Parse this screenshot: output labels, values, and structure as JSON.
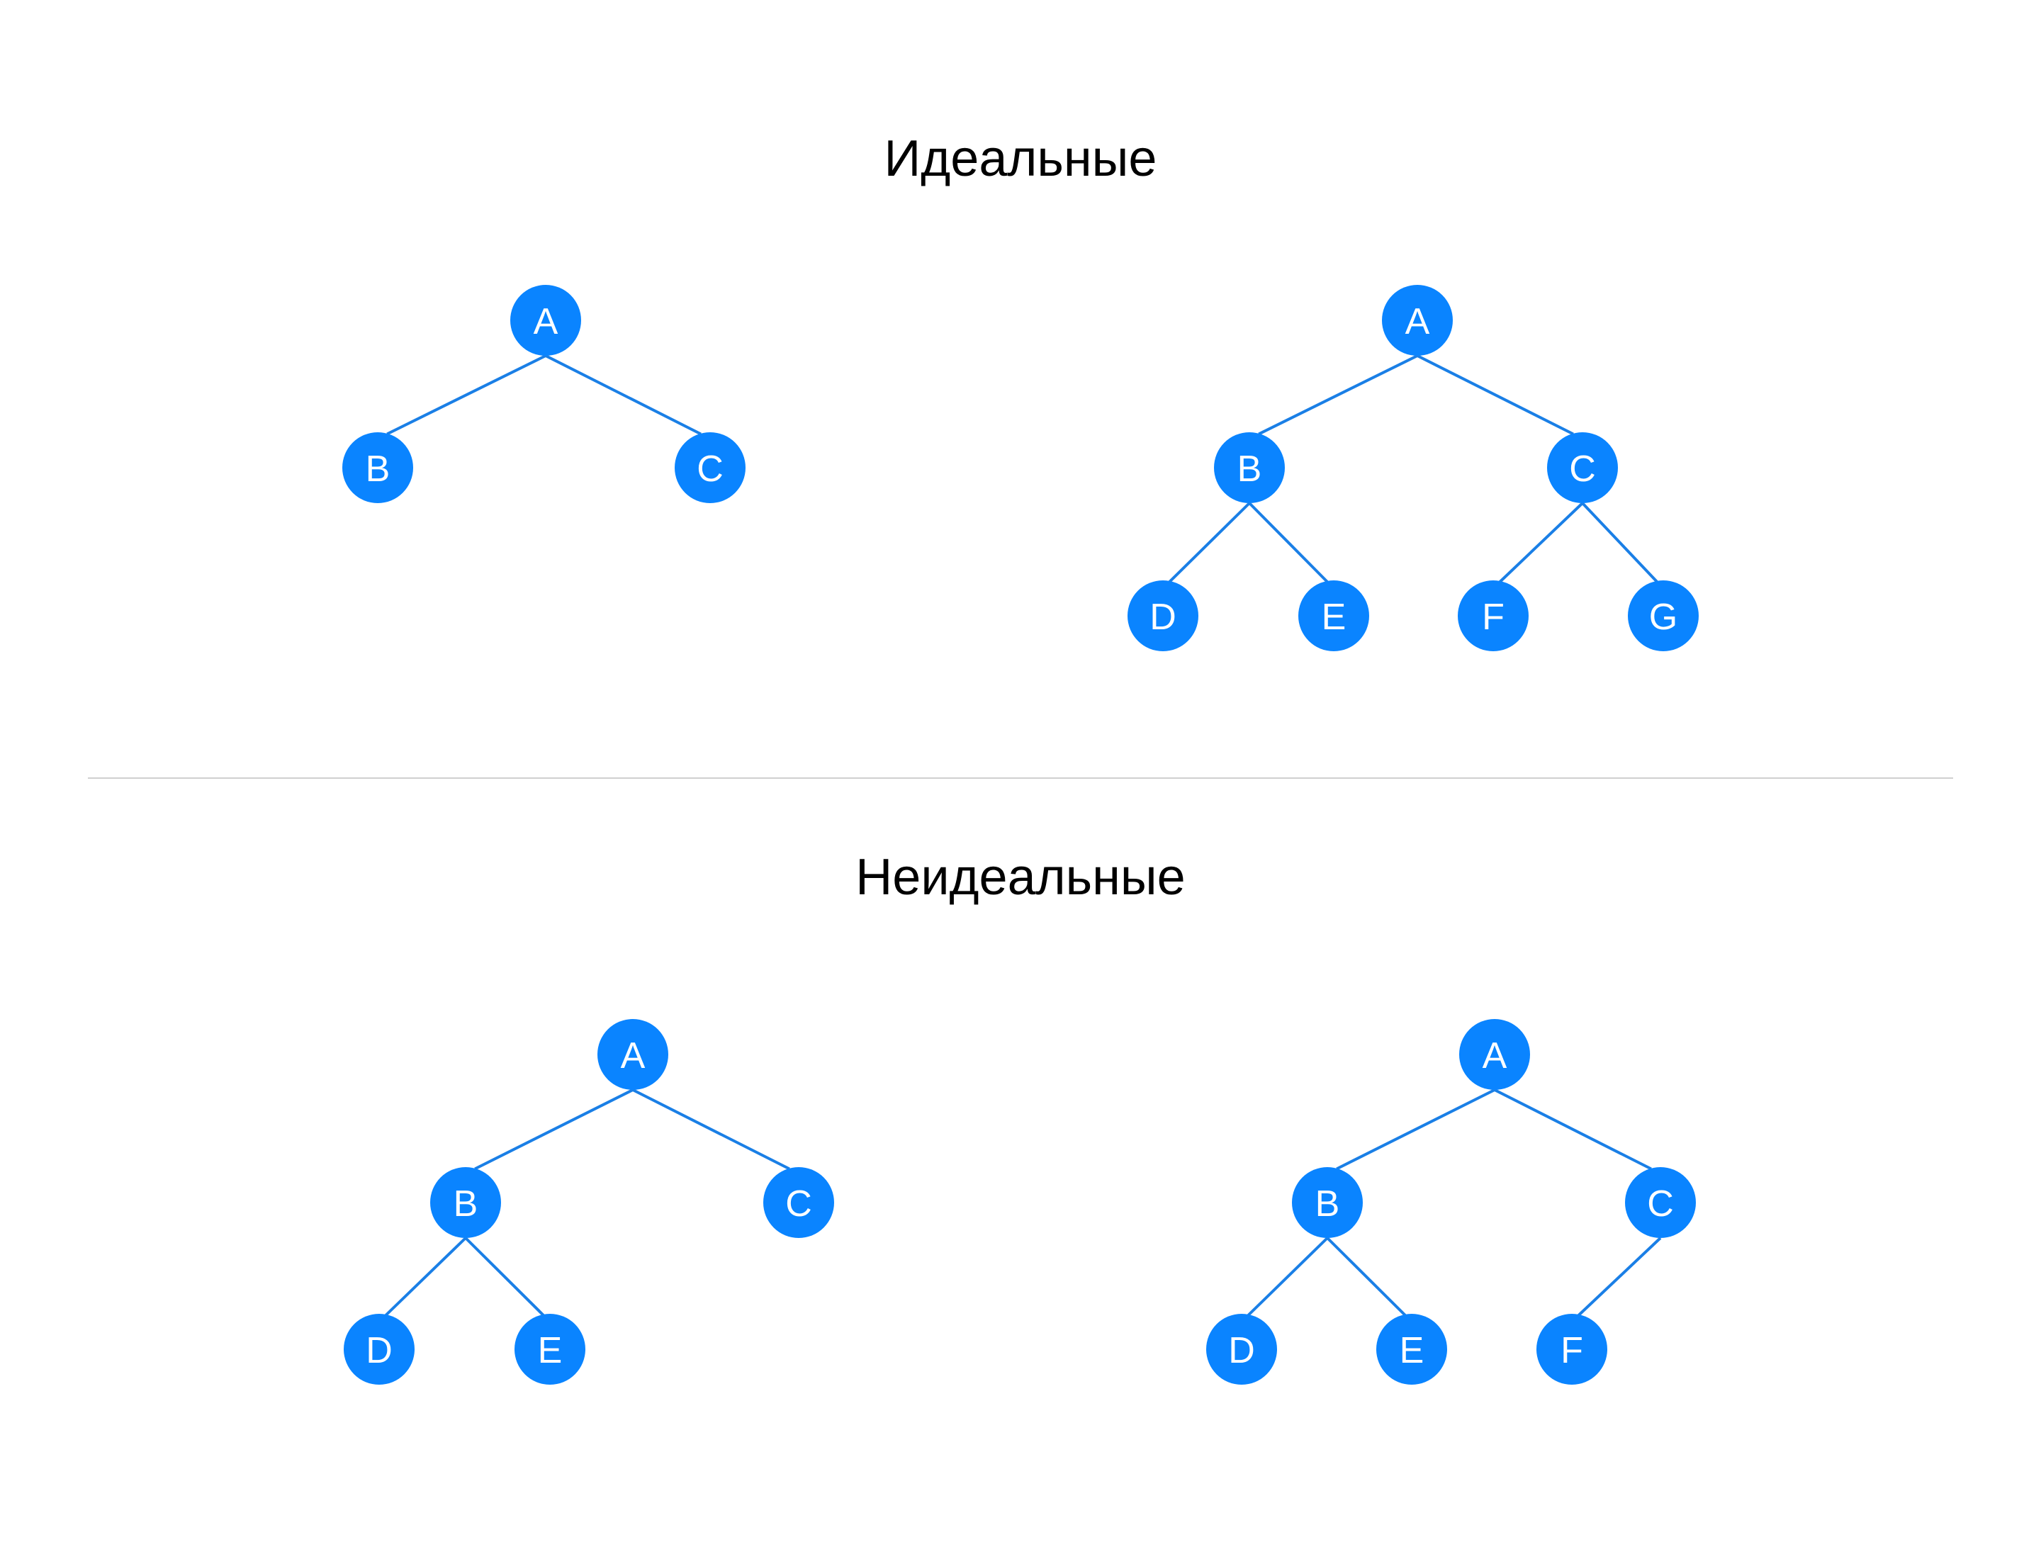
{
  "sections": {
    "ideal": {
      "title": "Идеальные",
      "trees": [
        {
          "nodes": [
            "A",
            "B",
            "C"
          ],
          "edges": [
            [
              "A",
              "B"
            ],
            [
              "A",
              "C"
            ]
          ]
        },
        {
          "nodes": [
            "A",
            "B",
            "C",
            "D",
            "E",
            "F",
            "G"
          ],
          "edges": [
            [
              "A",
              "B"
            ],
            [
              "A",
              "C"
            ],
            [
              "B",
              "D"
            ],
            [
              "B",
              "E"
            ],
            [
              "C",
              "F"
            ],
            [
              "C",
              "G"
            ]
          ]
        }
      ]
    },
    "nonideal": {
      "title": "Неидеальные",
      "trees": [
        {
          "nodes": [
            "A",
            "B",
            "C",
            "D",
            "E"
          ],
          "edges": [
            [
              "A",
              "B"
            ],
            [
              "A",
              "C"
            ],
            [
              "B",
              "D"
            ],
            [
              "B",
              "E"
            ]
          ]
        },
        {
          "nodes": [
            "A",
            "B",
            "C",
            "D",
            "E",
            "F"
          ],
          "edges": [
            [
              "A",
              "B"
            ],
            [
              "A",
              "C"
            ],
            [
              "B",
              "D"
            ],
            [
              "B",
              "E"
            ],
            [
              "C",
              "F"
            ]
          ]
        }
      ]
    }
  },
  "colors": {
    "node": "#0a84ff",
    "edge": "#1a7fe6",
    "label": "#ffffff",
    "divider": "#d0d0d0"
  }
}
